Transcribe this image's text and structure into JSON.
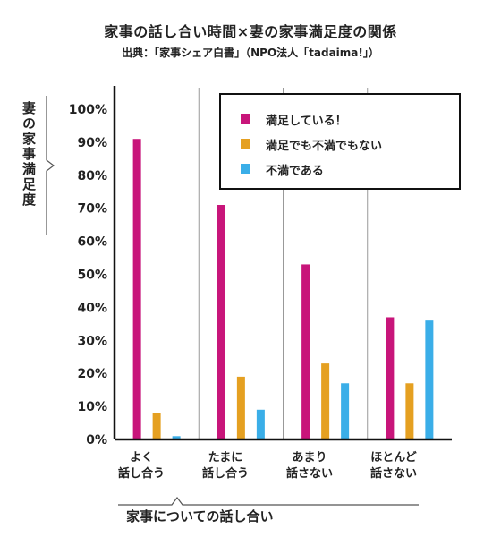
{
  "title": "家事の話し合い時間×妻の家事満足度の関係",
  "source": "出典：「家事シェア白書」（NPO法人「tadaima!」）",
  "chart_data": {
    "type": "bar",
    "title": "家事の話し合い時間×妻の家事満足度の関係",
    "ylabel": "妻の家事満足度",
    "xlabel": "家事についての話し合い",
    "ylim": [
      0,
      100
    ],
    "yticks": [
      "0%",
      "10%",
      "20%",
      "30%",
      "40%",
      "50%",
      "60%",
      "70%",
      "80%",
      "90%",
      "100%"
    ],
    "categories": [
      [
        "よく",
        "話し合う"
      ],
      [
        "たまに",
        "話し合う"
      ],
      [
        "あまり",
        "話さない"
      ],
      [
        "ほとんど",
        "話さない"
      ]
    ],
    "series": [
      {
        "name": "満足している！",
        "color": "#c8157a",
        "values": [
          91,
          71,
          53,
          37
        ]
      },
      {
        "name": "満足でも不満でもない",
        "color": "#e5a021",
        "values": [
          8,
          19,
          23,
          17
        ]
      },
      {
        "name": "不満である",
        "color": "#3aaee8",
        "values": [
          1,
          9,
          17,
          36
        ]
      }
    ],
    "legend_position": "top-right",
    "grid": "vertical category separators"
  }
}
